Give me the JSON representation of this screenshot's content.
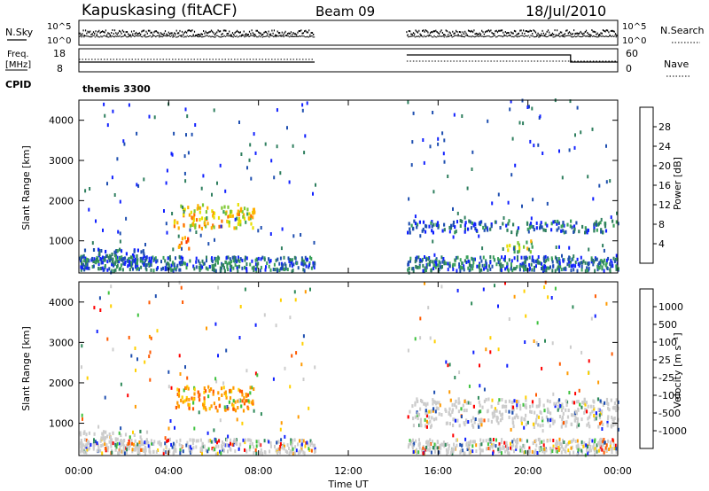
{
  "header": {
    "station": "Kapuskasing (fitACF)",
    "beam": "Beam 09",
    "date": "18/Jul/2010"
  },
  "status_panels": {
    "nsky_label": "N.Sky",
    "nsearch_label": "N.Search",
    "noise_ticks": [
      "10^5",
      "10^0"
    ],
    "noise_ticks_right": [
      "10^5",
      "10^0"
    ],
    "freq_label_1": "Freq.",
    "freq_label_2": "[MHz]",
    "freq_ticks": [
      "18",
      "8"
    ],
    "nave_label": "Nave",
    "nave_ticks": [
      "60",
      "0"
    ],
    "cpid_label": "CPID",
    "cpid_value": "themis 3300"
  },
  "colors": {
    "power": [
      "#1020ff",
      "#1f4fb0",
      "#2f7f5f",
      "#3aa05a",
      "#7ec832",
      "#e8e000",
      "#ffb000",
      "#ff7000",
      "#ff3000",
      "#ff0000"
    ],
    "velocity": [
      "#ff0000",
      "#ff5a00",
      "#ff9a00",
      "#ffd000",
      "#cccccc",
      "#cccccc",
      "#3fc23f",
      "#2f8a5a",
      "#1f4fb0",
      "#1020ff"
    ]
  },
  "chart_data": [
    {
      "type": "heatmap",
      "name": "power",
      "ylabel": "Slant Range [km]",
      "yticks": [
        "4000",
        "3000",
        "2000",
        "1000"
      ],
      "ylim": [
        200,
        4500
      ],
      "xlim": [
        0,
        24
      ],
      "colorbar_label": "Power [dB]",
      "colorbar_ticks": [
        "28",
        "24",
        "20",
        "16",
        "12",
        "8",
        "4"
      ],
      "colorbar_range": [
        0,
        32
      ],
      "data_gap_hours": [
        10.5,
        14.6
      ],
      "echo_regions": [
        {
          "t": [
            4.2,
            7.8
          ],
          "r": [
            1300,
            1900
          ],
          "value": 18
        },
        {
          "t": [
            4.4,
            5.0
          ],
          "r": [
            800,
            1100
          ],
          "value": 26
        },
        {
          "t": [
            19.0,
            20.2
          ],
          "r": [
            700,
            1000
          ],
          "value": 14
        },
        {
          "t": [
            14.6,
            24.0
          ],
          "r": [
            1200,
            1500
          ],
          "value": 6
        },
        {
          "t": [
            0.0,
            3.0
          ],
          "r": [
            300,
            800
          ],
          "value": 5
        }
      ]
    },
    {
      "type": "heatmap",
      "name": "velocity",
      "ylabel": "Slant Range [km]",
      "yticks": [
        "4000",
        "3000",
        "2000",
        "1000"
      ],
      "ylim": [
        200,
        4500
      ],
      "xlim": [
        0,
        24
      ],
      "xticks": [
        "00:00",
        "04:00",
        "08:00",
        "12:00",
        "16:00",
        "20:00",
        "00:00"
      ],
      "xlabel": "Time UT",
      "colorbar_label": "Velocity [m s⁻¹]",
      "colorbar_ticks": [
        "1000",
        "500",
        "100",
        "25",
        "-25",
        "-100",
        "-500",
        "-1000"
      ],
      "data_gap_hours": [
        10.5,
        14.6
      ],
      "echo_regions": [
        {
          "t": [
            4.2,
            7.8
          ],
          "r": [
            1300,
            1900
          ],
          "value": -100
        },
        {
          "t": [
            14.6,
            24.0
          ],
          "r": [
            900,
            1600
          ],
          "value": 0
        },
        {
          "t": [
            0.0,
            3.0
          ],
          "r": [
            300,
            800
          ],
          "value": 0
        }
      ]
    }
  ]
}
